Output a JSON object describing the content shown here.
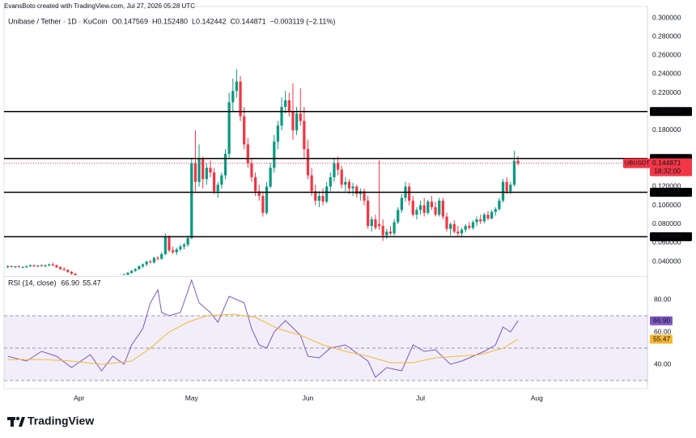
{
  "header": "EvansBoto created with TradingView.com, Jul 27, 2026 05:28 UTC",
  "footer": "TradingView",
  "chart_data": [
    {
      "type": "candlestick",
      "title": "Unibase / Tether · 1D · KuCoin",
      "legend": [
        "O0.147569",
        "H0.152480",
        "L0.142442",
        "C0.144871",
        "−0.003119 (−2.11%)"
      ],
      "up_color": "#089981",
      "down_color": "#f23645",
      "candles": [
        [
          0.034,
          0.036,
          0.033,
          0.035
        ],
        [
          0.035,
          0.036,
          0.034,
          0.034
        ],
        [
          0.034,
          0.035,
          0.033,
          0.035
        ],
        [
          0.035,
          0.036,
          0.034,
          0.034
        ],
        [
          0.034,
          0.035,
          0.033,
          0.034
        ],
        [
          0.034,
          0.036,
          0.033,
          0.035
        ],
        [
          0.035,
          0.037,
          0.034,
          0.036
        ],
        [
          0.036,
          0.037,
          0.034,
          0.035
        ],
        [
          0.035,
          0.036,
          0.034,
          0.036
        ],
        [
          0.036,
          0.037,
          0.035,
          0.035
        ],
        [
          0.035,
          0.037,
          0.034,
          0.036
        ],
        [
          0.036,
          0.038,
          0.035,
          0.037
        ],
        [
          0.037,
          0.039,
          0.035,
          0.036
        ],
        [
          0.036,
          0.037,
          0.033,
          0.034
        ],
        [
          0.034,
          0.035,
          0.031,
          0.032
        ],
        [
          0.032,
          0.034,
          0.03,
          0.031
        ],
        [
          0.031,
          0.032,
          0.028,
          0.029
        ],
        [
          0.029,
          0.03,
          0.026,
          0.027
        ],
        [
          0.027,
          0.028,
          0.023,
          0.024
        ],
        [
          0.024,
          0.025,
          0.022,
          0.023
        ],
        [
          0.023,
          0.024,
          0.021,
          0.022
        ],
        [
          0.022,
          0.024,
          0.021,
          0.023
        ],
        [
          0.023,
          0.024,
          0.021,
          0.022
        ],
        [
          0.022,
          0.023,
          0.02,
          0.021
        ],
        [
          0.021,
          0.023,
          0.02,
          0.022
        ],
        [
          0.022,
          0.023,
          0.021,
          0.022
        ],
        [
          0.022,
          0.024,
          0.021,
          0.023
        ],
        [
          0.023,
          0.024,
          0.022,
          0.022
        ],
        [
          0.022,
          0.024,
          0.021,
          0.023
        ],
        [
          0.023,
          0.025,
          0.022,
          0.024
        ],
        [
          0.024,
          0.026,
          0.023,
          0.025
        ],
        [
          0.025,
          0.027,
          0.024,
          0.026
        ],
        [
          0.026,
          0.029,
          0.025,
          0.028
        ],
        [
          0.028,
          0.031,
          0.027,
          0.03
        ],
        [
          0.03,
          0.033,
          0.029,
          0.032
        ],
        [
          0.032,
          0.036,
          0.031,
          0.035
        ],
        [
          0.035,
          0.038,
          0.033,
          0.037
        ],
        [
          0.037,
          0.041,
          0.035,
          0.04
        ],
        [
          0.04,
          0.042,
          0.038,
          0.039
        ],
        [
          0.039,
          0.045,
          0.038,
          0.044
        ],
        [
          0.044,
          0.046,
          0.041,
          0.043
        ],
        [
          0.043,
          0.05,
          0.042,
          0.048
        ],
        [
          0.048,
          0.07,
          0.047,
          0.066
        ],
        [
          0.066,
          0.068,
          0.05,
          0.052
        ],
        [
          0.052,
          0.056,
          0.048,
          0.05
        ],
        [
          0.05,
          0.055,
          0.047,
          0.053
        ],
        [
          0.053,
          0.058,
          0.051,
          0.056
        ],
        [
          0.056,
          0.06,
          0.053,
          0.058
        ],
        [
          0.058,
          0.068,
          0.056,
          0.065
        ],
        [
          0.065,
          0.15,
          0.064,
          0.145
        ],
        [
          0.145,
          0.18,
          0.115,
          0.125
        ],
        [
          0.125,
          0.165,
          0.12,
          0.15
        ],
        [
          0.15,
          0.152,
          0.118,
          0.128
        ],
        [
          0.128,
          0.145,
          0.122,
          0.14
        ],
        [
          0.14,
          0.148,
          0.13,
          0.135
        ],
        [
          0.135,
          0.14,
          0.112,
          0.115
        ],
        [
          0.115,
          0.125,
          0.108,
          0.122
        ],
        [
          0.122,
          0.135,
          0.118,
          0.132
        ],
        [
          0.132,
          0.16,
          0.128,
          0.155
        ],
        [
          0.155,
          0.22,
          0.15,
          0.21
        ],
        [
          0.21,
          0.235,
          0.2,
          0.222
        ],
        [
          0.222,
          0.245,
          0.215,
          0.232
        ],
        [
          0.232,
          0.238,
          0.19,
          0.195
        ],
        [
          0.195,
          0.205,
          0.16,
          0.165
        ],
        [
          0.165,
          0.172,
          0.14,
          0.145
        ],
        [
          0.145,
          0.15,
          0.125,
          0.13
        ],
        [
          0.13,
          0.135,
          0.11,
          0.115
        ],
        [
          0.115,
          0.122,
          0.105,
          0.11
        ],
        [
          0.11,
          0.115,
          0.088,
          0.092
        ],
        [
          0.092,
          0.125,
          0.09,
          0.12
        ],
        [
          0.12,
          0.145,
          0.118,
          0.14
        ],
        [
          0.14,
          0.175,
          0.135,
          0.168
        ],
        [
          0.168,
          0.19,
          0.16,
          0.185
        ],
        [
          0.185,
          0.215,
          0.18,
          0.205
        ],
        [
          0.205,
          0.222,
          0.198,
          0.212
        ],
        [
          0.212,
          0.22,
          0.195,
          0.2
        ],
        [
          0.2,
          0.23,
          0.17,
          0.18
        ],
        [
          0.18,
          0.205,
          0.175,
          0.198
        ],
        [
          0.198,
          0.225,
          0.185,
          0.19
        ],
        [
          0.19,
          0.205,
          0.15,
          0.16
        ],
        [
          0.16,
          0.17,
          0.128,
          0.132
        ],
        [
          0.132,
          0.14,
          0.11,
          0.115
        ],
        [
          0.115,
          0.122,
          0.1,
          0.105
        ],
        [
          0.105,
          0.115,
          0.098,
          0.11
        ],
        [
          0.11,
          0.118,
          0.1,
          0.104
        ],
        [
          0.104,
          0.125,
          0.102,
          0.12
        ],
        [
          0.12,
          0.135,
          0.115,
          0.13
        ],
        [
          0.13,
          0.15,
          0.125,
          0.145
        ],
        [
          0.145,
          0.152,
          0.132,
          0.138
        ],
        [
          0.138,
          0.142,
          0.118,
          0.122
        ],
        [
          0.122,
          0.13,
          0.115,
          0.125
        ],
        [
          0.125,
          0.128,
          0.112,
          0.118
        ],
        [
          0.118,
          0.124,
          0.11,
          0.12
        ],
        [
          0.12,
          0.122,
          0.108,
          0.112
        ],
        [
          0.112,
          0.118,
          0.105,
          0.115
        ],
        [
          0.115,
          0.118,
          0.1,
          0.105
        ],
        [
          0.105,
          0.11,
          0.075,
          0.078
        ],
        [
          0.078,
          0.088,
          0.072,
          0.085
        ],
        [
          0.085,
          0.09,
          0.074,
          0.076
        ],
        [
          0.08,
          0.148,
          0.074,
          0.078
        ],
        [
          0.078,
          0.085,
          0.062,
          0.068
        ],
        [
          0.068,
          0.075,
          0.064,
          0.072
        ],
        [
          0.072,
          0.078,
          0.068,
          0.07
        ],
        [
          0.07,
          0.085,
          0.068,
          0.082
        ],
        [
          0.082,
          0.098,
          0.08,
          0.095
        ],
        [
          0.095,
          0.112,
          0.092,
          0.108
        ],
        [
          0.108,
          0.125,
          0.104,
          0.12
        ],
        [
          0.12,
          0.124,
          0.1,
          0.105
        ],
        [
          0.105,
          0.11,
          0.088,
          0.09
        ],
        [
          0.09,
          0.098,
          0.085,
          0.095
        ],
        [
          0.095,
          0.105,
          0.09,
          0.1
        ],
        [
          0.1,
          0.108,
          0.088,
          0.092
        ],
        [
          0.092,
          0.106,
          0.09,
          0.104
        ],
        [
          0.104,
          0.11,
          0.095,
          0.098
        ],
        [
          0.098,
          0.104,
          0.088,
          0.09
        ],
        [
          0.09,
          0.108,
          0.088,
          0.105
        ],
        [
          0.105,
          0.108,
          0.085,
          0.088
        ],
        [
          0.088,
          0.092,
          0.072,
          0.075
        ],
        [
          0.075,
          0.082,
          0.068,
          0.08
        ],
        [
          0.08,
          0.084,
          0.07,
          0.072
        ],
        [
          0.072,
          0.078,
          0.066,
          0.07
        ],
        [
          0.07,
          0.076,
          0.067,
          0.074
        ],
        [
          0.074,
          0.08,
          0.071,
          0.078
        ],
        [
          0.078,
          0.082,
          0.074,
          0.076
        ],
        [
          0.076,
          0.084,
          0.074,
          0.082
        ],
        [
          0.082,
          0.088,
          0.078,
          0.085
        ],
        [
          0.085,
          0.09,
          0.08,
          0.083
        ],
        [
          0.083,
          0.092,
          0.081,
          0.09
        ],
        [
          0.09,
          0.094,
          0.084,
          0.086
        ],
        [
          0.086,
          0.095,
          0.085,
          0.093
        ],
        [
          0.093,
          0.098,
          0.089,
          0.096
        ],
        [
          0.096,
          0.108,
          0.094,
          0.105
        ],
        [
          0.105,
          0.128,
          0.103,
          0.125
        ],
        [
          0.125,
          0.13,
          0.112,
          0.115
        ],
        [
          0.115,
          0.125,
          0.112,
          0.122
        ],
        [
          0.122,
          0.158,
          0.12,
          0.147569
        ],
        [
          0.147569,
          0.15248,
          0.142442,
          0.144871
        ]
      ],
      "xlim": [
        -1,
        170.5
      ],
      "xticks": [
        {
          "value": 19,
          "label": "Apr"
        },
        {
          "value": 49,
          "label": "May"
        },
        {
          "value": 80,
          "label": "Jun"
        },
        {
          "value": 110,
          "label": "Jul"
        },
        {
          "value": 141,
          "label": "Aug"
        }
      ],
      "ylim": [
        0.0254,
        0.3121
      ],
      "yticks": [
        {
          "value": 0.3,
          "label": "0.300000"
        },
        {
          "value": 0.28,
          "label": "0.280000"
        },
        {
          "value": 0.26,
          "label": "0.260000"
        },
        {
          "value": 0.24,
          "label": "0.240000"
        },
        {
          "value": 0.22,
          "label": "0.220000"
        },
        {
          "value": 0.18,
          "label": "0.180000"
        },
        {
          "value": 0.12,
          "label": "0.120000"
        },
        {
          "value": 0.1,
          "label": "0.100000"
        },
        {
          "value": 0.08,
          "label": "0.080000"
        },
        {
          "value": 0.06,
          "label": "0.060000"
        },
        {
          "value": 0.04,
          "label": "0.040000"
        }
      ],
      "levels": [
        {
          "value": 0.2,
          "label": "0.200000"
        },
        {
          "value": 0.15,
          "label": "0.150000"
        },
        {
          "value": 0.113921,
          "label": "0.113921"
        },
        {
          "value": 0.066509,
          "label": "0.066509"
        }
      ],
      "last_price": {
        "symbol": "UBUSDT",
        "label": "0.144871",
        "countdown": "18:32:00"
      },
      "grid": false
    },
    {
      "type": "line",
      "title": "RSI (14, close)",
      "ylim": [
        25,
        93.5
      ],
      "yticks": [
        {
          "value": 40,
          "label": "40.00"
        },
        {
          "value": 60,
          "label": "60.00"
        },
        {
          "value": 80,
          "label": "80.00"
        }
      ],
      "band": [
        30,
        70
      ],
      "levels": [
        70,
        50,
        30
      ],
      "band_color": "#7e57c2",
      "series": [
        {
          "name": "RSI",
          "color": "#7e57c2",
          "x": [
            0,
            5,
            9,
            13,
            17,
            22,
            25,
            28,
            31,
            33,
            36,
            38,
            40,
            41,
            43,
            46,
            49,
            51,
            54,
            56,
            59,
            63,
            65,
            67,
            69,
            71,
            74,
            78,
            80,
            83,
            86,
            90,
            93,
            96,
            98,
            101,
            105,
            108,
            111,
            114,
            118,
            121,
            124,
            127,
            130,
            132,
            134,
            136
          ],
          "values": [
            45,
            42,
            48,
            45,
            38,
            46,
            36,
            45,
            40,
            52,
            62,
            78,
            86,
            72,
            70,
            72,
            92,
            78,
            72,
            66,
            82,
            78,
            62,
            52,
            50,
            60,
            67,
            58,
            45,
            44,
            50,
            52,
            47,
            42,
            32,
            38,
            36,
            52,
            48,
            49,
            40,
            42,
            45,
            48,
            52,
            63,
            60,
            66.9
          ],
          "value_label": "66.90"
        },
        {
          "name": "RSI-based MA",
          "color": "#f7b733",
          "x": [
            0,
            9,
            17,
            25,
            33,
            38,
            43,
            48,
            53,
            60,
            66,
            72,
            78,
            84,
            90,
            96,
            102,
            108,
            114,
            120,
            126,
            132,
            136
          ],
          "values": [
            43,
            43,
            42,
            40,
            42,
            50,
            60,
            66,
            70,
            71,
            69,
            62,
            58,
            52,
            48,
            45,
            41,
            41,
            44,
            45,
            46,
            50,
            55.47
          ],
          "value_label": "55.47"
        }
      ]
    }
  ]
}
